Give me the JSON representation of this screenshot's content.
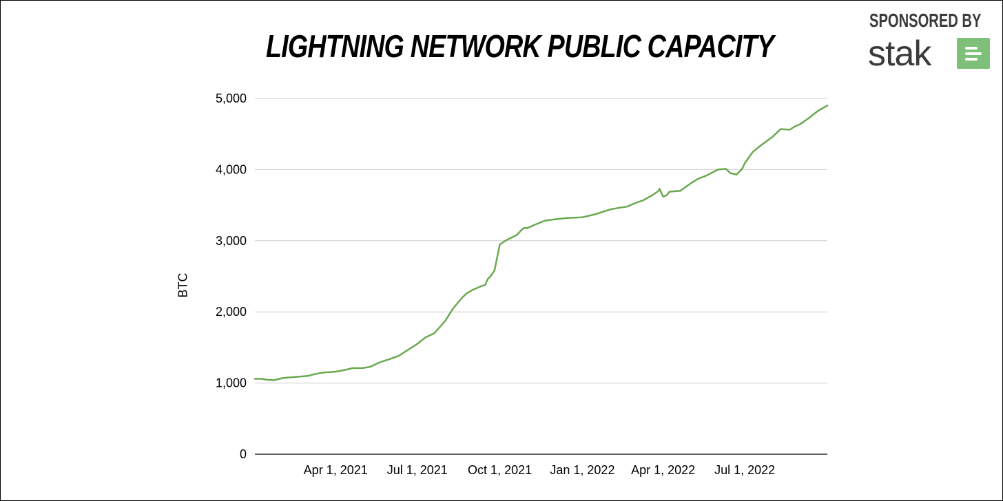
{
  "header": {
    "sponsor_text": "SPONSORED BY",
    "brand_name": "stak"
  },
  "colors": {
    "line": "#6aa84f",
    "grid": "#cccccc",
    "brand_badge": "#7ec07a"
  },
  "chart_data": {
    "type": "line",
    "title": "LIGHTNING NETWORK PUBLIC CAPACITY",
    "xlabel": "",
    "ylabel": "BTC",
    "ylim": [
      0,
      5000
    ],
    "yticks": [
      "0",
      "1,000",
      "2,000",
      "3,000",
      "4,000",
      "5,000"
    ],
    "ytick_values": [
      0,
      1000,
      2000,
      3000,
      4000,
      5000
    ],
    "xlim": [
      "2021-01-01",
      "2022-10-01"
    ],
    "xticks": [
      "Apr 1, 2021",
      "Jul 1, 2021",
      "Oct 1, 2021",
      "Jan 1, 2022",
      "Apr 1, 2022",
      "Jul 1, 2022"
    ],
    "xtick_dates": [
      "2021-04-01",
      "2021-07-01",
      "2021-10-01",
      "2022-01-01",
      "2022-04-01",
      "2022-07-01"
    ],
    "grid": true,
    "legend": "none",
    "series": [
      {
        "x": [
          "2021-01-01",
          "2021-01-08",
          "2021-01-15",
          "2021-01-22",
          "2021-02-01",
          "2021-02-10",
          "2021-02-20",
          "2021-03-01",
          "2021-03-10",
          "2021-03-20",
          "2021-04-01",
          "2021-04-10",
          "2021-04-20",
          "2021-05-01",
          "2021-05-10",
          "2021-05-20",
          "2021-06-01",
          "2021-06-10",
          "2021-06-20",
          "2021-07-01",
          "2021-07-10",
          "2021-07-20",
          "2021-08-01",
          "2021-08-10",
          "2021-08-20",
          "2021-08-25",
          "2021-09-01",
          "2021-09-10",
          "2021-09-15",
          "2021-09-16",
          "2021-09-18",
          "2021-09-20",
          "2021-09-25",
          "2021-10-01",
          "2021-10-10",
          "2021-10-20",
          "2021-10-25",
          "2021-10-28",
          "2021-11-01",
          "2021-11-10",
          "2021-11-20",
          "2021-12-01",
          "2021-12-15",
          "2022-01-01",
          "2022-01-15",
          "2022-02-01",
          "2022-02-10",
          "2022-02-20",
          "2022-03-01",
          "2022-03-10",
          "2022-03-20",
          "2022-03-27",
          "2022-03-28",
          "2022-04-01",
          "2022-04-05",
          "2022-04-08",
          "2022-04-20",
          "2022-05-01",
          "2022-05-10",
          "2022-05-20",
          "2022-06-01",
          "2022-06-10",
          "2022-06-15",
          "2022-06-22",
          "2022-06-28",
          "2022-07-01",
          "2022-07-10",
          "2022-07-20",
          "2022-08-01",
          "2022-08-10",
          "2022-08-20",
          "2022-08-25",
          "2022-09-01",
          "2022-09-10",
          "2022-09-20",
          "2022-10-01"
        ],
        "values": [
          1060,
          1060,
          1045,
          1040,
          1070,
          1080,
          1090,
          1100,
          1130,
          1150,
          1160,
          1180,
          1210,
          1210,
          1230,
          1290,
          1340,
          1380,
          1460,
          1550,
          1640,
          1700,
          1870,
          2050,
          2200,
          2260,
          2310,
          2360,
          2380,
          2420,
          2470,
          2490,
          2580,
          2950,
          3020,
          3080,
          3150,
          3180,
          3180,
          3230,
          3280,
          3300,
          3320,
          3330,
          3370,
          3440,
          3460,
          3480,
          3530,
          3570,
          3640,
          3700,
          3730,
          3620,
          3640,
          3690,
          3700,
          3800,
          3870,
          3920,
          4000,
          4010,
          3950,
          3930,
          4010,
          4090,
          4250,
          4350,
          4460,
          4570,
          4560,
          4600,
          4640,
          4720,
          4820,
          4900
        ]
      }
    ]
  }
}
